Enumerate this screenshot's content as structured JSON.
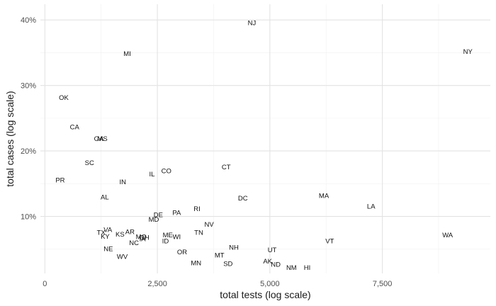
{
  "chart_data": {
    "type": "scatter",
    "xlabel": "total tests (log scale)",
    "ylabel": "total cases (log scale)",
    "x_ticks": [
      {
        "value": 0,
        "label": "0"
      },
      {
        "value": 2500,
        "label": "2,500"
      },
      {
        "value": 5000,
        "label": "5,000"
      },
      {
        "value": 7500,
        "label": "7,500"
      }
    ],
    "y_ticks": [
      {
        "value": 10,
        "label": "10%"
      },
      {
        "value": 20,
        "label": "20%"
      },
      {
        "value": 30,
        "label": "30%"
      },
      {
        "value": 40,
        "label": "40%"
      }
    ],
    "xlim": [
      -100,
      9900
    ],
    "ylim": [
      1.3,
      42.4
    ],
    "grid": true,
    "points": [
      {
        "label": "NJ",
        "x": 4600,
        "y": 39.6
      },
      {
        "label": "NY",
        "x": 9400,
        "y": 35.2
      },
      {
        "label": "MI",
        "x": 1830,
        "y": 34.9
      },
      {
        "label": "OK",
        "x": 420,
        "y": 28.2
      },
      {
        "label": "CA",
        "x": 660,
        "y": 23.7
      },
      {
        "label": "GA",
        "x": 1200,
        "y": 21.9
      },
      {
        "label": "MS",
        "x": 1280,
        "y": 21.9
      },
      {
        "label": "SC",
        "x": 990,
        "y": 18.2
      },
      {
        "label": "CT",
        "x": 4030,
        "y": 17.6
      },
      {
        "label": "CO",
        "x": 2700,
        "y": 17.0
      },
      {
        "label": "IL",
        "x": 2380,
        "y": 16.5
      },
      {
        "label": "PR",
        "x": 340,
        "y": 15.6
      },
      {
        "label": "IN",
        "x": 1730,
        "y": 15.3
      },
      {
        "label": "MA",
        "x": 6200,
        "y": 13.2
      },
      {
        "label": "AL",
        "x": 1330,
        "y": 13.0
      },
      {
        "label": "DC",
        "x": 4400,
        "y": 12.8
      },
      {
        "label": "LA",
        "x": 7250,
        "y": 11.6
      },
      {
        "label": "RI",
        "x": 3380,
        "y": 11.2
      },
      {
        "label": "PA",
        "x": 2930,
        "y": 10.6
      },
      {
        "label": "DE",
        "x": 2520,
        "y": 10.3
      },
      {
        "label": "MD",
        "x": 2420,
        "y": 9.6
      },
      {
        "label": "NV",
        "x": 3650,
        "y": 8.8
      },
      {
        "label": "VA",
        "x": 1400,
        "y": 8.0
      },
      {
        "label": "TX",
        "x": 1250,
        "y": 7.6
      },
      {
        "label": "AR",
        "x": 1890,
        "y": 7.7
      },
      {
        "label": "TN",
        "x": 3420,
        "y": 7.6
      },
      {
        "label": "WA",
        "x": 8950,
        "y": 7.2
      },
      {
        "label": "KS",
        "x": 1670,
        "y": 7.3
      },
      {
        "label": "KY",
        "x": 1340,
        "y": 7.0
      },
      {
        "label": "ME",
        "x": 2730,
        "y": 7.2
      },
      {
        "label": "MO",
        "x": 2140,
        "y": 6.9
      },
      {
        "label": "WI",
        "x": 2930,
        "y": 6.9
      },
      {
        "label": "IA",
        "x": 2170,
        "y": 6.6
      },
      {
        "label": "OH",
        "x": 2210,
        "y": 6.8
      },
      {
        "label": "VT",
        "x": 6330,
        "y": 6.3
      },
      {
        "label": "ID",
        "x": 2680,
        "y": 6.3
      },
      {
        "label": "NC",
        "x": 1980,
        "y": 6.0
      },
      {
        "label": "NH",
        "x": 4200,
        "y": 5.3
      },
      {
        "label": "NE",
        "x": 1410,
        "y": 5.1
      },
      {
        "label": "UT",
        "x": 5050,
        "y": 4.9
      },
      {
        "label": "OR",
        "x": 3050,
        "y": 4.6
      },
      {
        "label": "MT",
        "x": 3880,
        "y": 4.1
      },
      {
        "label": "WV",
        "x": 1720,
        "y": 3.9
      },
      {
        "label": "AK",
        "x": 4950,
        "y": 3.2
      },
      {
        "label": "MN",
        "x": 3360,
        "y": 2.9
      },
      {
        "label": "SD",
        "x": 4070,
        "y": 2.8
      },
      {
        "label": "ND",
        "x": 5130,
        "y": 2.7
      },
      {
        "label": "NM",
        "x": 5480,
        "y": 2.2
      },
      {
        "label": "HI",
        "x": 5830,
        "y": 2.2
      }
    ]
  }
}
